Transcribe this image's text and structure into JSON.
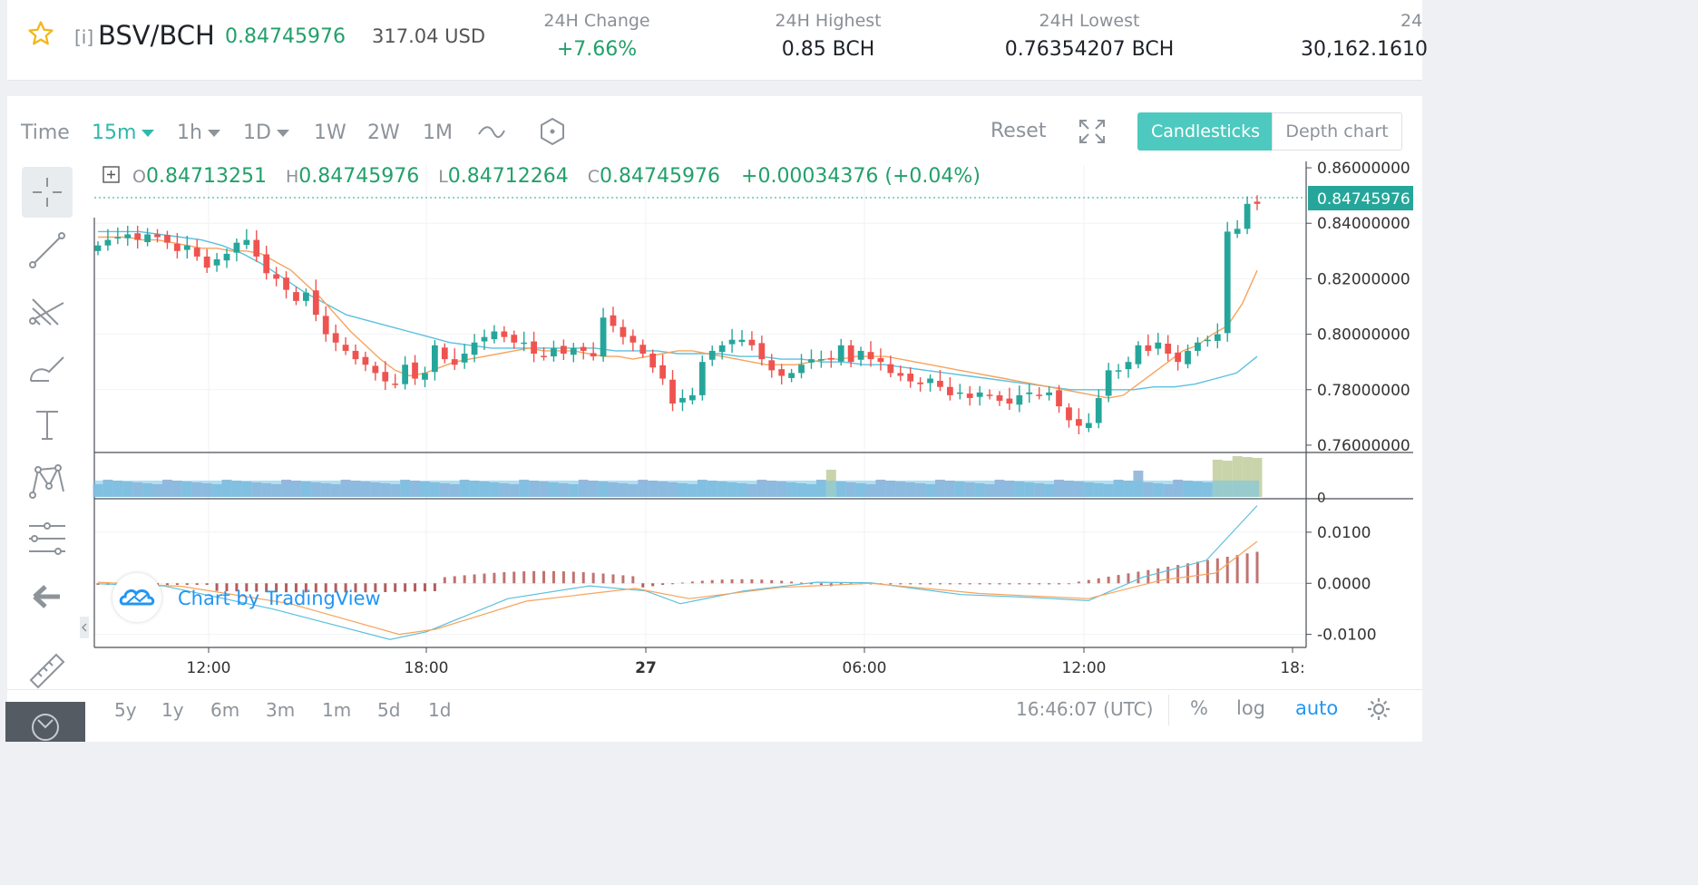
{
  "header": {
    "tag": "[i]",
    "pair": "BSV/BCH",
    "last_price": "0.84745976",
    "usd_price": "317.04 USD",
    "stats": [
      {
        "label": "24H Change",
        "value": "+7.66%",
        "color": "#22a06b"
      },
      {
        "label": "24H Highest",
        "value": "0.85 BCH",
        "color": "#1f2329"
      },
      {
        "label": "24H Lowest",
        "value": "0.76354207 BCH",
        "color": "#1f2329"
      },
      {
        "label": "24",
        "value": "30,162.1610",
        "color": "#1f2329"
      }
    ]
  },
  "toolbar": {
    "time_label": "Time",
    "intervals": [
      "15m",
      "1h",
      "1D",
      "1W",
      "2W",
      "1M"
    ],
    "active_interval": "15m",
    "reset_label": "Reset",
    "candlesticks_label": "Candlesticks",
    "depth_label": "Depth chart"
  },
  "legend": {
    "o_key": "O",
    "o": "0.84713251",
    "h_key": "H",
    "h": "0.84745976",
    "l_key": "L",
    "l": "0.84712264",
    "c_key": "C",
    "c": "0.84745976",
    "change": "+0.00034376 (+0.04%)"
  },
  "watermark": "Chart by TradingView",
  "bottom": {
    "ranges": [
      "5y",
      "1y",
      "6m",
      "3m",
      "1m",
      "5d",
      "1d"
    ],
    "clock": "16:46:07 (UTC)",
    "percent": "%",
    "log": "log",
    "auto": "auto"
  },
  "colors": {
    "up": "#26a69a",
    "down": "#ef5350",
    "accent": "#4dc9bf",
    "ma_fast": "#f7a35c",
    "ma_slow": "#5bc0de"
  },
  "chart_data": {
    "type": "candlestick",
    "price_axis": [
      "0.86000000",
      "0.84000000",
      "0.82000000",
      "0.80000000",
      "0.78000000",
      "0.76000000"
    ],
    "price_range": [
      0.759,
      0.861
    ],
    "last_price_label": "0.84745976",
    "volume_axis": [
      "0"
    ],
    "macd_axis": [
      "0.0100",
      "0.0000",
      "-0.0100"
    ],
    "macd_range": [
      -0.0122,
      0.0162
    ],
    "time_ticks": [
      "12:00",
      "18:00",
      "27",
      "06:00",
      "12:00",
      "18:"
    ],
    "closes": [
      0.832,
      0.834,
      0.835,
      0.836,
      0.834,
      0.836,
      0.835,
      0.833,
      0.83,
      0.832,
      0.828,
      0.824,
      0.827,
      0.829,
      0.833,
      0.834,
      0.828,
      0.822,
      0.82,
      0.816,
      0.812,
      0.815,
      0.807,
      0.8,
      0.797,
      0.794,
      0.791,
      0.789,
      0.786,
      0.783,
      0.782,
      0.789,
      0.784,
      0.786,
      0.796,
      0.791,
      0.789,
      0.793,
      0.797,
      0.799,
      0.801,
      0.799,
      0.797,
      0.797,
      0.793,
      0.792,
      0.795,
      0.793,
      0.795,
      0.794,
      0.792,
      0.806,
      0.803,
      0.799,
      0.797,
      0.793,
      0.788,
      0.784,
      0.775,
      0.777,
      0.778,
      0.79,
      0.794,
      0.796,
      0.798,
      0.798,
      0.796,
      0.791,
      0.787,
      0.785,
      0.786,
      0.789,
      0.791,
      0.791,
      0.791,
      0.796,
      0.79,
      0.794,
      0.791,
      0.79,
      0.786,
      0.785,
      0.783,
      0.782,
      0.784,
      0.781,
      0.778,
      0.779,
      0.777,
      0.779,
      0.778,
      0.776,
      0.775,
      0.778,
      0.779,
      0.778,
      0.779,
      0.774,
      0.769,
      0.767,
      0.768,
      0.777,
      0.787,
      0.787,
      0.79,
      0.796,
      0.794,
      0.797,
      0.793,
      0.79,
      0.794,
      0.797,
      0.798,
      0.8,
      0.837,
      0.838,
      0.847,
      0.847
    ],
    "ma_fast": [
      0.835,
      0.835,
      0.835,
      0.834,
      0.834,
      0.833,
      0.832,
      0.831,
      0.831,
      0.83,
      0.83,
      0.829,
      0.826,
      0.823,
      0.818,
      0.813,
      0.807,
      0.801,
      0.796,
      0.791,
      0.787,
      0.785,
      0.786,
      0.788,
      0.79,
      0.791,
      0.792,
      0.793,
      0.794,
      0.795,
      0.794,
      0.794,
      0.794,
      0.793,
      0.792,
      0.792,
      0.791,
      0.792,
      0.793,
      0.794,
      0.794,
      0.793,
      0.792,
      0.791,
      0.79,
      0.789,
      0.789,
      0.789,
      0.79,
      0.791,
      0.791,
      0.792,
      0.792,
      0.792,
      0.791,
      0.79,
      0.789,
      0.788,
      0.787,
      0.786,
      0.785,
      0.784,
      0.783,
      0.782,
      0.781,
      0.78,
      0.779,
      0.778,
      0.777,
      0.778,
      0.782,
      0.786,
      0.79,
      0.794,
      0.796,
      0.8,
      0.803,
      0.811,
      0.823
    ],
    "ma_slow": [
      0.837,
      0.837,
      0.837,
      0.836,
      0.835,
      0.834,
      0.832,
      0.829,
      0.825,
      0.82,
      0.815,
      0.811,
      0.807,
      0.805,
      0.803,
      0.801,
      0.799,
      0.797,
      0.796,
      0.795,
      0.795,
      0.795,
      0.795,
      0.795,
      0.795,
      0.794,
      0.794,
      0.794,
      0.793,
      0.793,
      0.793,
      0.792,
      0.792,
      0.791,
      0.791,
      0.79,
      0.79,
      0.789,
      0.789,
      0.788,
      0.787,
      0.786,
      0.785,
      0.784,
      0.783,
      0.782,
      0.781,
      0.78,
      0.78,
      0.78,
      0.78,
      0.781,
      0.781,
      0.782,
      0.784,
      0.786,
      0.792
    ]
  }
}
